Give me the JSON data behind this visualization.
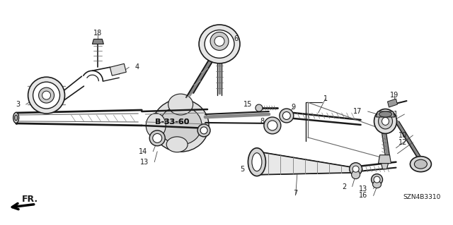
{
  "bg_color": "#ffffff",
  "fig_width": 6.4,
  "fig_height": 3.19,
  "dpi": 100,
  "diagram_color": "#1a1a1a",
  "part_code": "SZN4B3310",
  "fr_label": "FR."
}
